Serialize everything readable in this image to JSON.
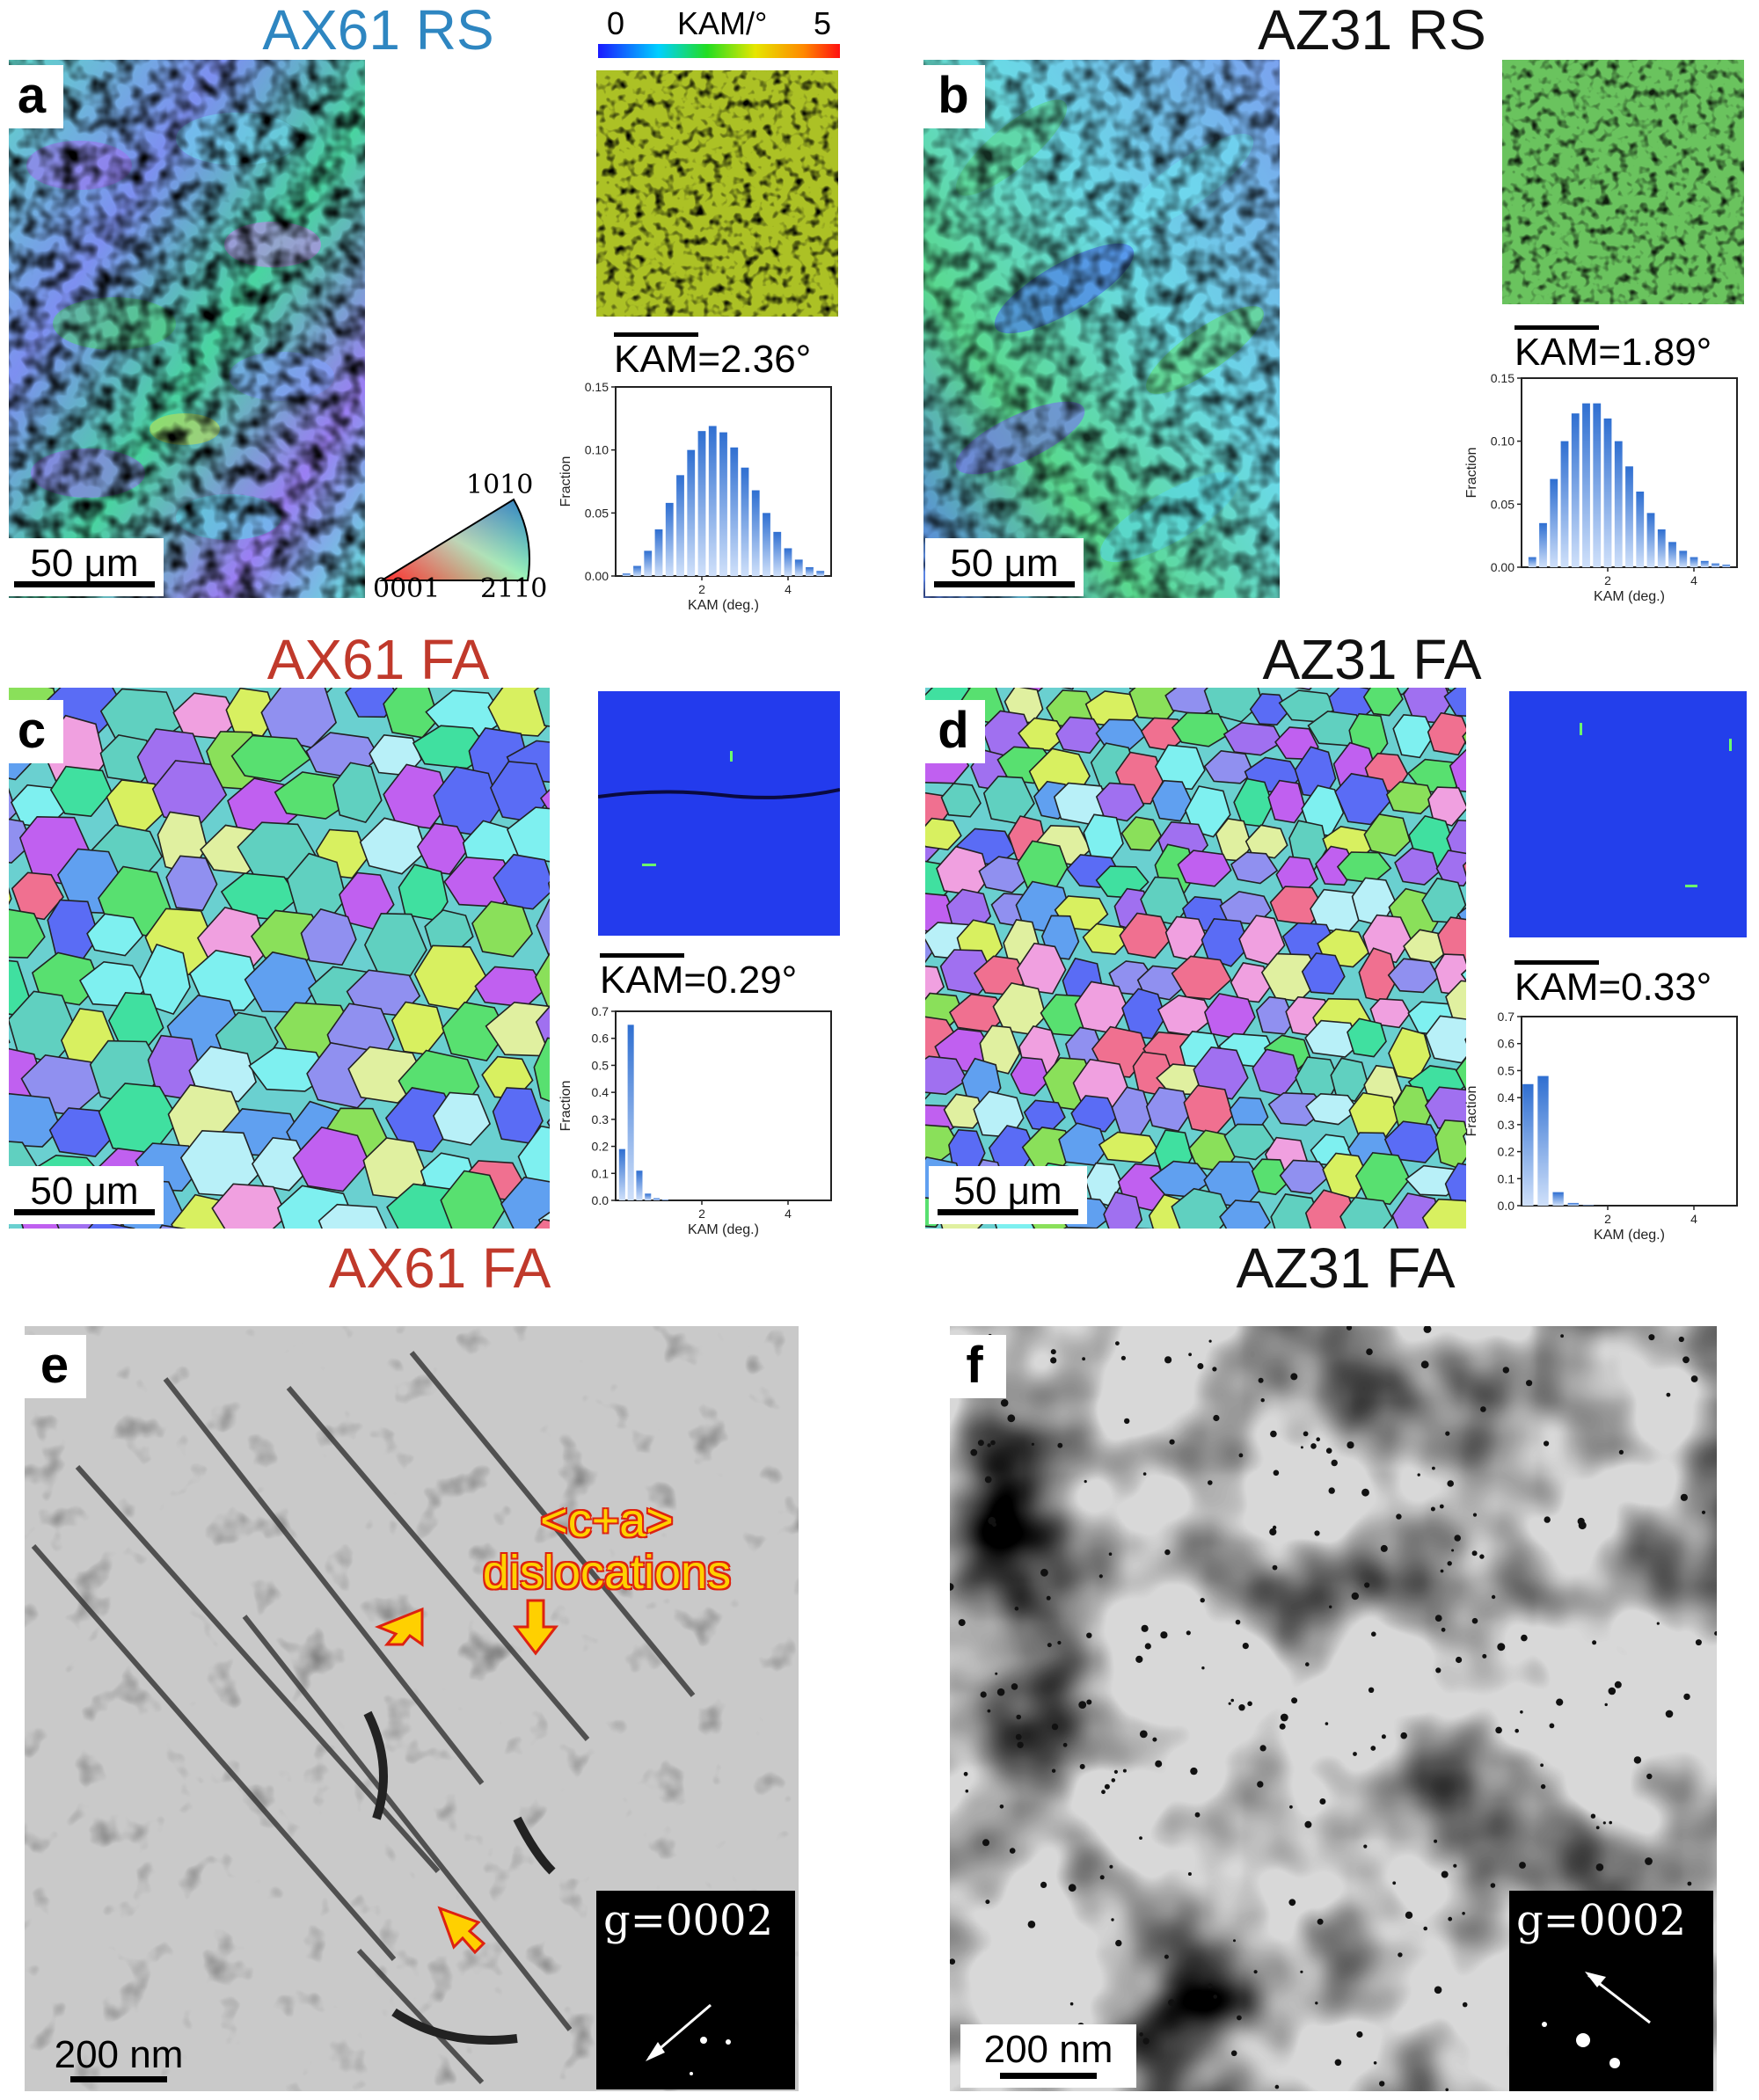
{
  "panels": {
    "a": {
      "label": "a",
      "title": "AX61 RS",
      "title_color": "#2e86c1",
      "scale": "50 μm",
      "kam_mean": "2.36°",
      "kam_prefix": "KAM="
    },
    "b": {
      "label": "b",
      "title": "AZ31 RS",
      "title_color": "#111111",
      "scale": "50 μm",
      "kam_mean": "1.89°",
      "kam_prefix": "KAM="
    },
    "c": {
      "label": "c",
      "title": "AX61 FA",
      "title_color": "#c0392b",
      "scale": "50 μm",
      "kam_mean": "0.29°",
      "kam_prefix": "KAM="
    },
    "d": {
      "label": "d",
      "title": "AZ31 FA",
      "title_color": "#111111",
      "scale": "50 μm",
      "kam_mean": "0.33°",
      "kam_prefix": "KAM="
    },
    "e": {
      "label": "e",
      "title": "AX61 FA",
      "title_color": "#c0392b",
      "scale": "200 nm",
      "diffraction": "g=0002",
      "annotation_line1": "<c+a>",
      "annotation_line2": "dislocations"
    },
    "f": {
      "label": "f",
      "title": "AZ31 FA",
      "title_color": "#111111",
      "scale": "200 nm",
      "diffraction": "g=0002"
    }
  },
  "kam_colorbar": {
    "min": "0",
    "label": "KAM/°",
    "max": "5"
  },
  "ipf_legend": {
    "corner_0001": "0001",
    "corner_2110": "2110",
    "corner_1010": "1010"
  },
  "histogram_axes": {
    "ylabel": "Fraction",
    "xlabel": "KAM (deg.)"
  },
  "chart_data": [
    {
      "type": "bar",
      "panel": "a",
      "xlabel": "KAM (deg.)",
      "ylabel": "Fraction",
      "xlim": [
        0,
        5
      ],
      "ylim": [
        0,
        0.15
      ],
      "yticks": [
        "0.00",
        "0.05",
        "0.10",
        "0.15"
      ],
      "xticks": [
        "2",
        "4"
      ],
      "x": [
        0.25,
        0.5,
        0.75,
        1.0,
        1.25,
        1.5,
        1.75,
        2.0,
        2.25,
        2.5,
        2.75,
        3.0,
        3.25,
        3.5,
        3.75,
        4.0,
        4.25,
        4.5,
        4.75
      ],
      "values": [
        0.002,
        0.008,
        0.02,
        0.037,
        0.058,
        0.08,
        0.1,
        0.115,
        0.119,
        0.114,
        0.102,
        0.086,
        0.068,
        0.05,
        0.035,
        0.022,
        0.013,
        0.007,
        0.004
      ]
    },
    {
      "type": "bar",
      "panel": "b",
      "xlabel": "KAM (deg.)",
      "ylabel": "Fraction",
      "xlim": [
        0,
        5
      ],
      "ylim": [
        0,
        0.15
      ],
      "yticks": [
        "0.00",
        "0.05",
        "0.10",
        "0.15"
      ],
      "xticks": [
        "2",
        "4"
      ],
      "x": [
        0.25,
        0.5,
        0.75,
        1.0,
        1.25,
        1.5,
        1.75,
        2.0,
        2.25,
        2.5,
        2.75,
        3.0,
        3.25,
        3.5,
        3.75,
        4.0,
        4.25,
        4.5,
        4.75
      ],
      "values": [
        0.008,
        0.035,
        0.07,
        0.1,
        0.122,
        0.13,
        0.13,
        0.118,
        0.1,
        0.08,
        0.06,
        0.043,
        0.03,
        0.02,
        0.013,
        0.008,
        0.005,
        0.003,
        0.002
      ]
    },
    {
      "type": "bar",
      "panel": "c",
      "xlabel": "KAM (deg.)",
      "ylabel": "Fraction",
      "xlim": [
        0,
        5
      ],
      "ylim": [
        0,
        0.7
      ],
      "yticks": [
        "0.0",
        "0.1",
        "0.2",
        "0.3",
        "0.4",
        "0.5",
        "0.6",
        "0.7"
      ],
      "xticks": [
        "2",
        "4"
      ],
      "x": [
        0.15,
        0.35,
        0.55,
        0.75,
        0.95,
        1.15
      ],
      "values": [
        0.19,
        0.65,
        0.11,
        0.025,
        0.008,
        0.003
      ]
    },
    {
      "type": "bar",
      "panel": "d",
      "xlabel": "KAM (deg.)",
      "ylabel": "Fraction",
      "xlim": [
        0,
        5
      ],
      "ylim": [
        0,
        0.7
      ],
      "yticks": [
        "0.0",
        "0.1",
        "0.2",
        "0.3",
        "0.4",
        "0.5",
        "0.6",
        "0.7"
      ],
      "xticks": [
        "2",
        "4"
      ],
      "x": [
        0.15,
        0.5,
        0.85,
        1.2,
        1.55
      ],
      "values": [
        0.45,
        0.48,
        0.05,
        0.01,
        0.002
      ]
    }
  ]
}
